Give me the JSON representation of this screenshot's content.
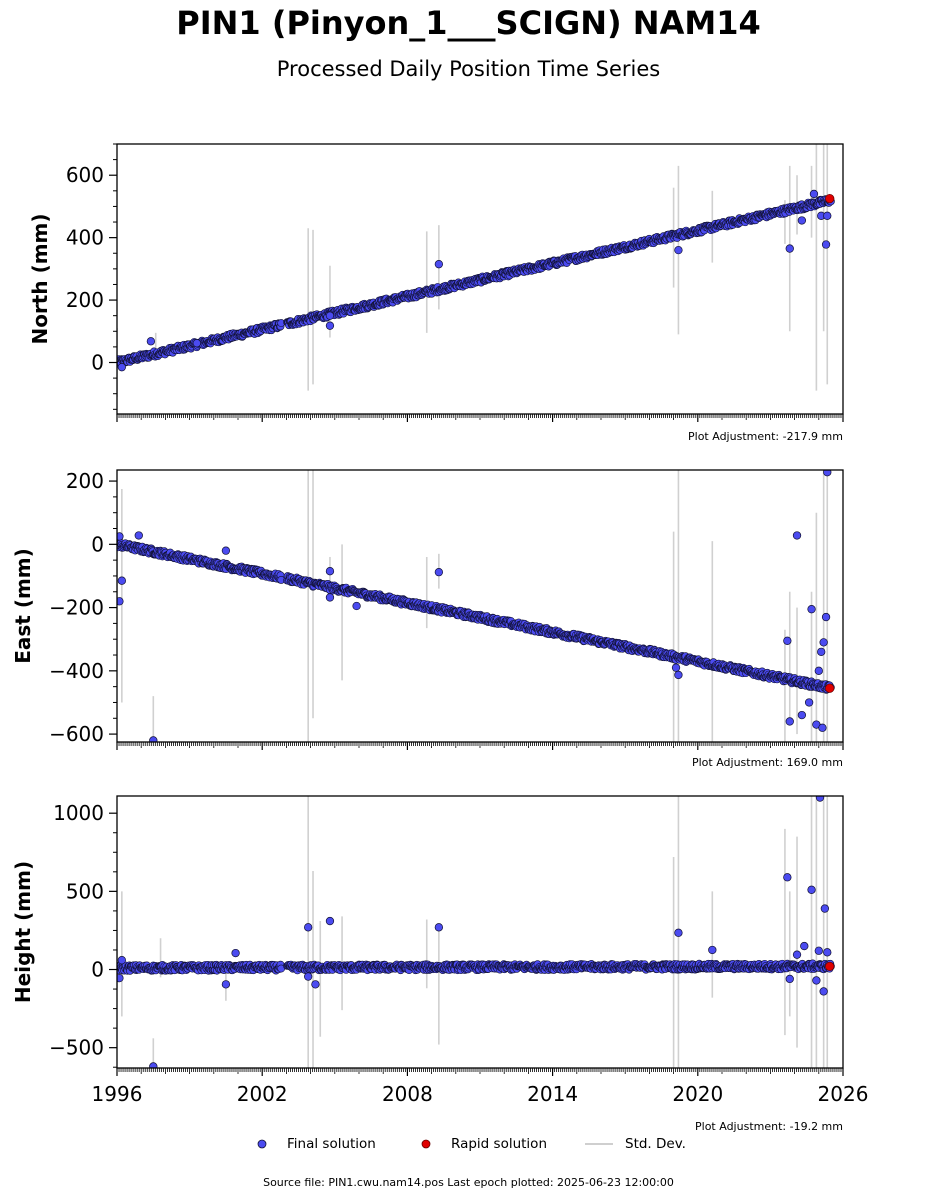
{
  "header": {
    "title": "PIN1 (Pinyon_1___SCIGN) NAM14",
    "subtitle": "Processed Daily Position Time Series"
  },
  "legend": {
    "final": "Final solution",
    "rapid": "Rapid solution",
    "std": "Std. Dev."
  },
  "footer": {
    "source": "Source file: PIN1.cwu.nam14.pos  Last epoch plotted: 2025-06-23 12:00:00"
  },
  "colors": {
    "final": "#4b4bf0",
    "final_edge": "#111133",
    "rapid": "#e00000",
    "std": "#d0d0d0"
  },
  "chart_data": [
    {
      "type": "scatter",
      "ylabel": "North (mm)",
      "adjustment": "Plot Adjustment: -217.9 mm",
      "xlim": [
        1996,
        2026
      ],
      "ylim": [
        -165,
        700
      ],
      "yticks": [
        0,
        200,
        400,
        600
      ],
      "ytick_labels": [
        "0",
        "200",
        "400",
        "600"
      ],
      "trend": [
        [
          1996.0,
          0
        ],
        [
          2025.5,
          520
        ]
      ],
      "series": [
        {
          "name": "Final solution",
          "points": [
            [
              1996.2,
              -15
            ],
            [
              1997.4,
              68
            ],
            [
              1999.3,
              62
            ],
            [
              2004.8,
              118
            ],
            [
              2004.8,
              150
            ],
            [
              2009.3,
              315
            ],
            [
              2019.2,
              360
            ],
            [
              2023.8,
              365
            ],
            [
              2024.3,
              455
            ],
            [
              2024.8,
              540
            ],
            [
              2025.1,
              470
            ],
            [
              2025.3,
              378
            ],
            [
              2025.35,
              470
            ]
          ]
        },
        {
          "name": "Rapid solution",
          "points": [
            [
              2025.45,
              525
            ]
          ]
        }
      ],
      "std_dev": [
        [
          1996.0,
          -110,
          110
        ],
        [
          1997.6,
          20,
          95
        ],
        [
          2003.9,
          -90,
          430
        ],
        [
          2004.1,
          -70,
          425
        ],
        [
          2004.8,
          80,
          310
        ],
        [
          2008.8,
          95,
          420
        ],
        [
          2009.3,
          170,
          440
        ],
        [
          2019.0,
          240,
          560
        ],
        [
          2019.2,
          90,
          630
        ],
        [
          2020.6,
          320,
          550
        ],
        [
          2023.6,
          380,
          520
        ],
        [
          2023.8,
          100,
          630
        ],
        [
          2024.1,
          410,
          600
        ],
        [
          2024.7,
          400,
          630
        ],
        [
          2024.9,
          -90,
          700
        ],
        [
          2025.2,
          100,
          700
        ],
        [
          2025.35,
          -70,
          700
        ]
      ]
    },
    {
      "type": "scatter",
      "ylabel": "East (mm)",
      "adjustment": "Plot Adjustment: 169.0 mm",
      "xlim": [
        1996,
        2026
      ],
      "ylim": [
        -625,
        235
      ],
      "yticks": [
        -600,
        -400,
        -200,
        0,
        200
      ],
      "ytick_labels": [
        "−600",
        "−400",
        "−200",
        "0",
        "200"
      ],
      "trend": [
        [
          1996.0,
          0
        ],
        [
          2025.5,
          -455
        ]
      ],
      "series": [
        {
          "name": "Final solution",
          "points": [
            [
              1996.1,
              25
            ],
            [
              1996.1,
              -180
            ],
            [
              1996.2,
              -115
            ],
            [
              1996.9,
              28
            ],
            [
              1997.5,
              -620
            ],
            [
              2000.5,
              -20
            ],
            [
              2004.8,
              -85
            ],
            [
              2004.8,
              -168
            ],
            [
              2005.9,
              -195
            ],
            [
              2009.3,
              -88
            ],
            [
              2019.1,
              -390
            ],
            [
              2019.2,
              -413
            ],
            [
              2023.7,
              -305
            ],
            [
              2023.8,
              -560
            ],
            [
              2024.1,
              28
            ],
            [
              2024.3,
              -540
            ],
            [
              2024.6,
              -500
            ],
            [
              2024.7,
              -205
            ],
            [
              2024.9,
              -570
            ],
            [
              2025.0,
              -400
            ],
            [
              2025.1,
              -340
            ],
            [
              2025.15,
              -580
            ],
            [
              2025.2,
              -310
            ],
            [
              2025.3,
              -230
            ],
            [
              2025.35,
              228
            ]
          ]
        },
        {
          "name": "Rapid solution",
          "points": [
            [
              2025.45,
              -455
            ]
          ]
        }
      ],
      "std_dev": [
        [
          1996.0,
          -180,
          80
        ],
        [
          1996.2,
          -500,
          175
        ],
        [
          1997.5,
          -625,
          -480
        ],
        [
          2003.9,
          -625,
          235
        ],
        [
          2004.1,
          -550,
          235
        ],
        [
          2004.8,
          -160,
          -40
        ],
        [
          2005.3,
          -430,
          0
        ],
        [
          2008.8,
          -265,
          -40
        ],
        [
          2009.3,
          -140,
          -30
        ],
        [
          2019.0,
          -625,
          40
        ],
        [
          2019.2,
          -625,
          235
        ],
        [
          2020.6,
          -625,
          10
        ],
        [
          2023.6,
          -625,
          -270
        ],
        [
          2023.8,
          -550,
          -150
        ],
        [
          2024.1,
          -600,
          -200
        ],
        [
          2024.7,
          -625,
          -150
        ],
        [
          2024.9,
          -625,
          100
        ],
        [
          2025.2,
          -625,
          235
        ],
        [
          2025.35,
          -625,
          235
        ]
      ]
    },
    {
      "type": "scatter",
      "ylabel": "Height (mm)",
      "adjustment": "Plot Adjustment: -19.2 mm",
      "xlim": [
        1996,
        2026
      ],
      "ylim": [
        -630,
        1110
      ],
      "yticks": [
        -500,
        0,
        500,
        1000
      ],
      "ytick_labels": [
        "−500",
        "0",
        "500",
        "1000"
      ],
      "xticks": [
        1996,
        2002,
        2008,
        2014,
        2020,
        2026
      ],
      "xtick_labels": [
        "1996",
        "2002",
        "2008",
        "2014",
        "2020",
        "2026"
      ],
      "trend": [
        [
          1996.0,
          10
        ],
        [
          2025.5,
          20
        ]
      ],
      "series": [
        {
          "name": "Final solution",
          "points": [
            [
              1996.1,
              -55
            ],
            [
              1996.2,
              60
            ],
            [
              1997.5,
              -620
            ],
            [
              2000.5,
              -95
            ],
            [
              2000.9,
              105
            ],
            [
              2003.9,
              270
            ],
            [
              2003.9,
              -45
            ],
            [
              2004.2,
              -95
            ],
            [
              2004.8,
              310
            ],
            [
              2009.3,
              270
            ],
            [
              2019.2,
              235
            ],
            [
              2020.6,
              125
            ],
            [
              2023.7,
              590
            ],
            [
              2023.8,
              -60
            ],
            [
              2024.1,
              95
            ],
            [
              2024.4,
              150
            ],
            [
              2024.7,
              510
            ],
            [
              2024.9,
              -70
            ],
            [
              2025.0,
              120
            ],
            [
              2025.05,
              1100
            ],
            [
              2025.2,
              -140
            ],
            [
              2025.25,
              390
            ],
            [
              2025.35,
              110
            ]
          ]
        },
        {
          "name": "Rapid solution",
          "points": [
            [
              2025.45,
              20
            ]
          ]
        }
      ],
      "std_dev": [
        [
          1996.0,
          -120,
          130
        ],
        [
          1996.2,
          -300,
          500
        ],
        [
          1997.5,
          -630,
          -440
        ],
        [
          1997.8,
          -50,
          200
        ],
        [
          2000.5,
          -200,
          0
        ],
        [
          2003.9,
          -630,
          1110
        ],
        [
          2004.1,
          -630,
          630
        ],
        [
          2004.4,
          -430,
          310
        ],
        [
          2005.3,
          -260,
          340
        ],
        [
          2008.8,
          -120,
          320
        ],
        [
          2009.3,
          -480,
          280
        ],
        [
          2019.0,
          -630,
          720
        ],
        [
          2019.2,
          -630,
          1110
        ],
        [
          2020.6,
          -180,
          500
        ],
        [
          2023.6,
          -420,
          900
        ],
        [
          2023.8,
          -300,
          500
        ],
        [
          2024.1,
          -500,
          850
        ],
        [
          2024.7,
          -630,
          1110
        ],
        [
          2024.9,
          -630,
          1110
        ],
        [
          2025.2,
          -630,
          1110
        ],
        [
          2025.35,
          -630,
          1110
        ]
      ]
    }
  ]
}
